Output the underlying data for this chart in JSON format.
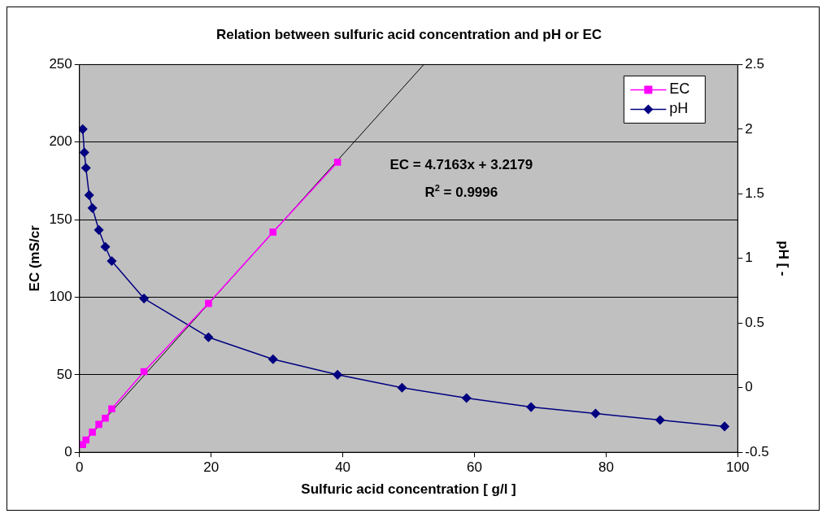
{
  "chart_data": {
    "type": "line",
    "title": "Relation between sulfuric acid concentration and pH or EC",
    "xlabel": "Sulfuric acid concentration [ g/l ]",
    "ylabel": "EC (mS/cr",
    "y2label": "pH [ -",
    "xlim": [
      0,
      100
    ],
    "xticks": [
      0,
      20,
      40,
      60,
      80,
      100
    ],
    "ylim": [
      0,
      250
    ],
    "yticks": [
      0,
      50,
      100,
      150,
      200,
      250
    ],
    "y2lim": [
      -0.5,
      2.5
    ],
    "y2ticks": [
      -0.5,
      0,
      0.5,
      1,
      1.5,
      2,
      2.5
    ],
    "grid": "y",
    "legend": "top right",
    "annotations": [
      "EC = 4.7163x + 3.2179",
      "R$^{2}$ = 0.9996"
    ],
    "series": [
      {
        "name": "EC",
        "color": "#ff00ff",
        "marker": "square",
        "x": [
          0.49,
          0.98,
          1.96,
          2.94,
          3.92,
          4.9,
          9.8,
          19.6,
          29.4,
          39.2
        ],
        "values": [
          5,
          8,
          13,
          18,
          22,
          28,
          52,
          96,
          142,
          187
        ]
      },
      {
        "name": "pH",
        "color": "#000080",
        "marker": "diamond",
        "axis": "y2",
        "x": [
          0.49,
          0.74,
          0.98,
          1.47,
          1.96,
          2.94,
          3.92,
          4.9,
          9.8,
          19.6,
          29.4,
          39.2,
          49,
          58.8,
          68.6,
          78.4,
          88.2,
          98
        ],
        "values": [
          2.0,
          1.82,
          1.7,
          1.49,
          1.39,
          1.22,
          1.09,
          0.98,
          0.69,
          0.39,
          0.22,
          0.1,
          0.0,
          -0.08,
          -0.15,
          -0.2,
          -0.25,
          -0.3
        ]
      },
      {
        "color": "#000000",
        "marker": "none",
        "x": [
          0,
          52.3
        ],
        "values": [
          3.2,
          250
        ]
      }
    ]
  }
}
